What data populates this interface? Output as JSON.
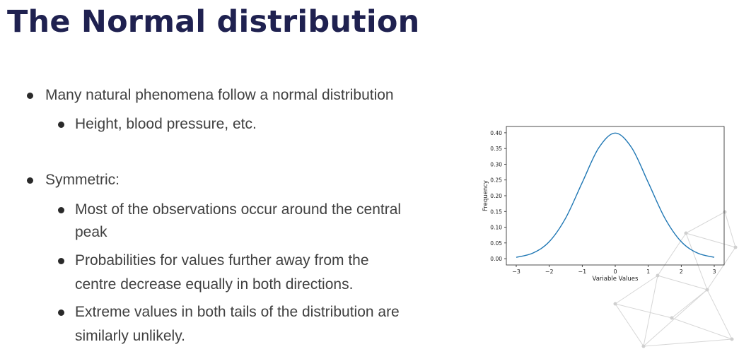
{
  "slide": {
    "title": "The Normal distribution",
    "bullets": [
      {
        "level": 1,
        "text": "Many natural phenomena follow a normal distribution"
      },
      {
        "level": 2,
        "text": "Height, blood pressure, etc."
      },
      {
        "level": 1,
        "text": "Symmetric:"
      },
      {
        "level": 2,
        "line1": "Most of the observations occur around the central",
        "line2": "peak"
      },
      {
        "level": 2,
        "line1": "Probabilities for values further away from the",
        "line2": "centre decrease equally in both directions."
      },
      {
        "level": 2,
        "line1": "Extreme values in both tails of the distribution are",
        "line2": "similarly unlikely."
      }
    ]
  },
  "chart_data": {
    "type": "line",
    "xlabel": "Variable Values",
    "ylabel": "Frequency",
    "xlim": [
      -3.3,
      3.3
    ],
    "ylim": [
      -0.02,
      0.42
    ],
    "x_ticks": [
      "−3",
      "−2",
      "−1",
      "0",
      "1",
      "2",
      "3"
    ],
    "x_tick_values": [
      -3,
      -2,
      -1,
      0,
      1,
      2,
      3
    ],
    "y_ticks": [
      "0.00",
      "0.05",
      "0.10",
      "0.15",
      "0.20",
      "0.25",
      "0.30",
      "0.35",
      "0.40"
    ],
    "y_tick_values": [
      0,
      0.05,
      0.1,
      0.15,
      0.2,
      0.25,
      0.3,
      0.35,
      0.4
    ],
    "series": [
      {
        "color": "#1f77b4",
        "x": [
          -3.0,
          -2.5,
          -2.0,
          -1.5,
          -1.0,
          -0.5,
          0.0,
          0.5,
          1.0,
          1.5,
          2.0,
          2.5,
          3.0
        ],
        "y": [
          0.0044,
          0.0175,
          0.054,
          0.1295,
          0.242,
          0.352,
          0.399,
          0.352,
          0.242,
          0.1295,
          0.054,
          0.0175,
          0.0044
        ]
      }
    ],
    "grid": false
  }
}
